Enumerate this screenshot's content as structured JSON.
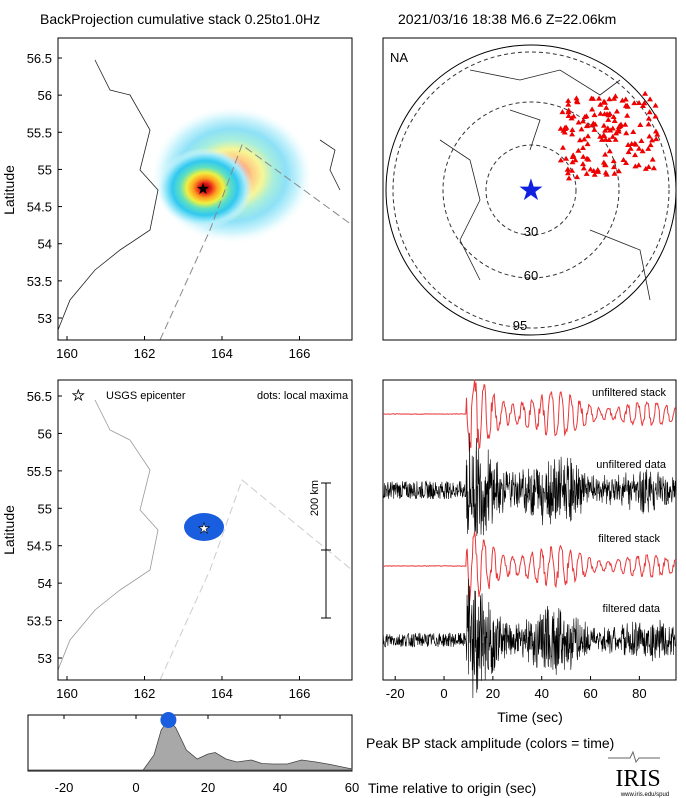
{
  "title_left": "BackProjection cumulative stack 0.25to1.0Hz",
  "title_right": "2021/03/16 18:38  M6.6  Z=22.06km",
  "colors": {
    "stack": "#e8383a",
    "data": "#000000",
    "star_polar": "#1020e0",
    "stations": "#ee0000",
    "maxima": "#1a5ee0",
    "envelope": "#a8a8a8"
  },
  "chart_data": [
    {
      "type": "heatmap",
      "name": "cumulative stack map",
      "xlabel": "",
      "ylabel": "Latitude",
      "xlim": [
        159.8,
        166.8
      ],
      "ylim": [
        52.7,
        56.75
      ],
      "xticks": [
        "160",
        "162",
        "164",
        "166"
      ],
      "xtick_values": [
        160,
        162,
        164,
        166
      ],
      "yticks": [
        "53",
        "53.5",
        "54",
        "54.5",
        "55",
        "55.5",
        "56",
        "56.5"
      ],
      "ytick_values": [
        53,
        53.5,
        54,
        54.5,
        55,
        55.5,
        56,
        56.5
      ],
      "peak": {
        "lon": 163.2,
        "lat": 54.7
      },
      "epicenter": {
        "lon": 163.2,
        "lat": 54.7
      }
    },
    {
      "type": "scatter",
      "name": "station polar map",
      "label": "NA",
      "rings": [
        "30",
        "60",
        "95"
      ],
      "ring_values": [
        30,
        60,
        95
      ]
    },
    {
      "type": "scatter",
      "name": "local maxima map",
      "ylabel": "Latitude",
      "xticks": [
        "160",
        "162",
        "164",
        "166"
      ],
      "xtick_values": [
        160,
        162,
        164,
        166
      ],
      "yticks": [
        "53",
        "53.5",
        "54",
        "54.5",
        "55",
        "55.5",
        "56",
        "56.5"
      ],
      "ytick_values": [
        53,
        53.5,
        54,
        54.5,
        55,
        55.5,
        56,
        56.5
      ],
      "legend_star": "USGS epicenter",
      "legend_dots": "dots: local maxima",
      "scale_bar": "200 km",
      "maxima": [
        {
          "lon": 163.2,
          "lat": 54.7
        }
      ]
    },
    {
      "type": "line",
      "name": "seismograms",
      "xlabel": "Time (sec)",
      "xlim": [
        -25,
        95
      ],
      "xticks": [
        "-20",
        "0",
        "20",
        "40",
        "60",
        "80"
      ],
      "xtick_values": [
        -20,
        0,
        20,
        40,
        60,
        80
      ],
      "traces": [
        "unfiltered stack",
        "unfiltered data",
        "filtered stack",
        "filtered data"
      ],
      "onset_sec": 9
    },
    {
      "type": "area",
      "name": "peak BP stack amplitude",
      "title": "Peak BP stack amplitude (colors = time)",
      "xlabel": "Time relative to origin (sec)",
      "xlim": [
        -30,
        60
      ],
      "xticks": [
        "-20",
        "0",
        "20",
        "40",
        "60"
      ],
      "xtick_values": [
        -20,
        0,
        20,
        40,
        60
      ],
      "x": [
        -30,
        2,
        5,
        7,
        9,
        11,
        14,
        17,
        20,
        22,
        25,
        28,
        32,
        35,
        38,
        42,
        46,
        50,
        54,
        58,
        60
      ],
      "y": [
        0,
        0,
        0.3,
        0.8,
        1.0,
        0.85,
        0.4,
        0.22,
        0.32,
        0.35,
        0.22,
        0.16,
        0.2,
        0.13,
        0.12,
        0.12,
        0.2,
        0.16,
        0.11,
        0.05,
        0.02
      ],
      "peak_marker_time": 9
    }
  ],
  "logo": "IRIS",
  "logo_url": "www.iris.edu/spud"
}
